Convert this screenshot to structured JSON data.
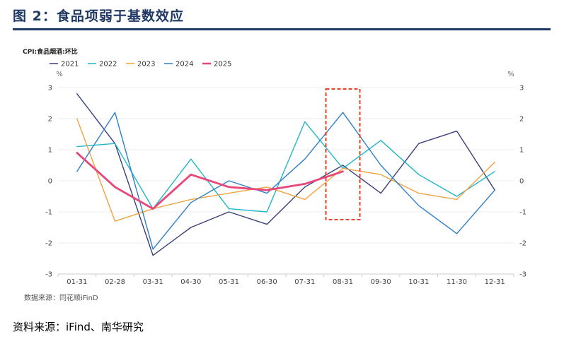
{
  "figure": {
    "title": "图 2：食品项弱于基数效应",
    "source_inner": "数据来源：同花顺iFinD",
    "source_outer": "资料来源：iFind、南华研究"
  },
  "chart_data": {
    "type": "line",
    "title": "CPI:食品烟酒:环比",
    "y_unit_left": "%",
    "y_unit_right": "%",
    "ylim": [
      -3,
      3
    ],
    "yticks": [
      3,
      2,
      1,
      0,
      -1,
      -2,
      -3
    ],
    "categories": [
      "01-31",
      "02-28",
      "03-31",
      "04-30",
      "05-31",
      "06-30",
      "07-31",
      "08-31",
      "09-30",
      "10-31",
      "11-30",
      "12-31"
    ],
    "legend_position": "top-left",
    "grid": true,
    "highlight_category": "08-31",
    "highlight_color": "#e0452c",
    "series": [
      {
        "name": "2021",
        "color": "#3b3f7a",
        "width": 1.4,
        "values": [
          2.8,
          1.2,
          -2.4,
          -1.5,
          -1.0,
          -1.4,
          -0.2,
          0.5,
          -0.4,
          1.2,
          1.6,
          -0.3
        ]
      },
      {
        "name": "2022",
        "color": "#1fb7c9",
        "width": 1.4,
        "values": [
          1.1,
          1.2,
          -0.9,
          0.7,
          -0.9,
          -1.0,
          1.9,
          0.4,
          1.3,
          0.2,
          -0.5,
          0.3
        ]
      },
      {
        "name": "2023",
        "color": "#f0a341",
        "width": 1.4,
        "values": [
          2.0,
          -1.3,
          -0.9,
          -0.6,
          -0.4,
          -0.2,
          -0.6,
          0.4,
          0.2,
          -0.4,
          -0.6,
          0.6
        ]
      },
      {
        "name": "2024",
        "color": "#2f7ec7",
        "width": 1.4,
        "values": [
          0.3,
          2.2,
          -2.2,
          -0.7,
          0.0,
          -0.4,
          0.7,
          2.2,
          0.5,
          -0.8,
          -1.7,
          -0.3
        ]
      },
      {
        "name": "2025",
        "color": "#e8477a",
        "width": 2.8,
        "values": [
          0.9,
          -0.2,
          -0.9,
          0.2,
          -0.2,
          -0.3,
          -0.1,
          0.3,
          null,
          null,
          null,
          null
        ]
      }
    ]
  }
}
